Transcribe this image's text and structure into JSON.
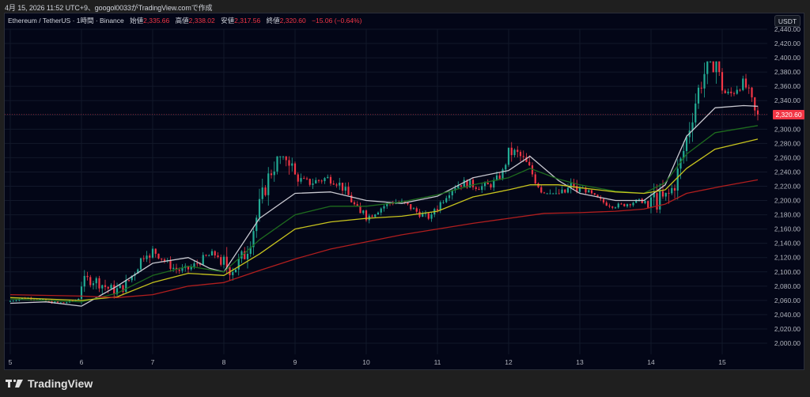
{
  "caption": "4月 15, 2026 11:52 UTC+9、googol0033がTradingView.comで作成",
  "legend": {
    "symbol": "Ethereum / TetherUS · 1時間 · Binance",
    "open_label": "始値",
    "open": "2,335.66",
    "high_label": "高値",
    "high": "2,338.02",
    "low_label": "安値",
    "low": "2,317.56",
    "close_label": "終値",
    "close": "2,320.60",
    "change": "−15.06 (−0.64%)"
  },
  "currency_button": "USDT",
  "last_price_tag": "2,320.60",
  "brand": "TradingView",
  "colors": {
    "background": "#030617",
    "up": "#22ab94",
    "down": "#f23645",
    "ma_white": "#c8c8d0",
    "ma_green": "#1e6b1e",
    "ma_yellow": "#c8c41e",
    "ma_red": "#b01e1e"
  },
  "chart_data": {
    "type": "candlestick",
    "title": "Ethereum / TetherUS · 1時間 · Binance",
    "xlabel": "",
    "ylabel": "USDT",
    "ylim": [
      2000,
      2440
    ],
    "y_ticks": [
      "2,440.00",
      "2,420.00",
      "2,400.00",
      "2,380.00",
      "2,360.00",
      "2,340.00",
      "2,320.00",
      "2,300.00",
      "2,280.00",
      "2,260.00",
      "2,240.00",
      "2,220.00",
      "2,200.00",
      "2,180.00",
      "2,160.00",
      "2,140.00",
      "2,120.00",
      "2,100.00",
      "2,080.00",
      "2,060.00",
      "2,040.00",
      "2,020.00",
      "2,000.00"
    ],
    "x_ticks": [
      "5",
      "6",
      "7",
      "8",
      "9",
      "10",
      "11",
      "12",
      "13",
      "14",
      "15"
    ],
    "grid": true,
    "last_price": 2320.6,
    "ohlc_daily_approx": [
      {
        "day": "5",
        "open": 2058,
        "high": 2072,
        "low": 2048,
        "close": 2062
      },
      {
        "day": "6",
        "open": 2062,
        "high": 2140,
        "low": 2030,
        "close": 2120
      },
      {
        "day": "7",
        "open": 2120,
        "high": 2170,
        "low": 2095,
        "close": 2110
      },
      {
        "day": "8",
        "open": 2110,
        "high": 2262,
        "low": 2072,
        "close": 2252
      },
      {
        "day": "9",
        "open": 2252,
        "high": 2265,
        "low": 2178,
        "close": 2186
      },
      {
        "day": "10",
        "open": 2186,
        "high": 2230,
        "low": 2168,
        "close": 2188
      },
      {
        "day": "11",
        "open": 2188,
        "high": 2262,
        "low": 2182,
        "close": 2250
      },
      {
        "day": "12",
        "open": 2250,
        "high": 2328,
        "low": 2210,
        "close": 2212
      },
      {
        "day": "13",
        "open": 2212,
        "high": 2222,
        "low": 2178,
        "close": 2190
      },
      {
        "day": "14",
        "open": 2190,
        "high": 2395,
        "low": 2182,
        "close": 2380
      },
      {
        "day": "15",
        "open": 2380,
        "high": 2418,
        "low": 2305,
        "close": 2320.6
      }
    ],
    "series": [
      {
        "name": "MA (white, short)",
        "color": "#c8c8d0",
        "points": [
          [
            5,
            2056
          ],
          [
            5.5,
            2058
          ],
          [
            6,
            2052
          ],
          [
            6.5,
            2080
          ],
          [
            7,
            2112
          ],
          [
            7.5,
            2120
          ],
          [
            7.8,
            2105
          ],
          [
            8,
            2100
          ],
          [
            8.5,
            2175
          ],
          [
            9,
            2210
          ],
          [
            9.5,
            2212
          ],
          [
            10,
            2200
          ],
          [
            10.5,
            2196
          ],
          [
            11,
            2206
          ],
          [
            11.5,
            2232
          ],
          [
            12,
            2242
          ],
          [
            12.3,
            2262
          ],
          [
            12.7,
            2228
          ],
          [
            13,
            2210
          ],
          [
            13.5,
            2200
          ],
          [
            13.9,
            2200
          ],
          [
            14.2,
            2222
          ],
          [
            14.5,
            2290
          ],
          [
            14.9,
            2330
          ],
          [
            15.3,
            2333
          ],
          [
            15.5,
            2332
          ]
        ]
      },
      {
        "name": "MA (green)",
        "color": "#1e6b1e",
        "points": [
          [
            5,
            2062
          ],
          [
            6,
            2058
          ],
          [
            6.5,
            2070
          ],
          [
            7,
            2095
          ],
          [
            7.5,
            2108
          ],
          [
            8,
            2100
          ],
          [
            8.5,
            2145
          ],
          [
            9,
            2180
          ],
          [
            9.5,
            2192
          ],
          [
            10,
            2192
          ],
          [
            10.5,
            2198
          ],
          [
            11,
            2208
          ],
          [
            11.5,
            2222
          ],
          [
            12,
            2232
          ],
          [
            12.3,
            2245
          ],
          [
            12.7,
            2230
          ],
          [
            13,
            2222
          ],
          [
            13.5,
            2213
          ],
          [
            13.9,
            2210
          ],
          [
            14.2,
            2225
          ],
          [
            14.5,
            2265
          ],
          [
            14.9,
            2295
          ],
          [
            15.5,
            2305
          ]
        ]
      },
      {
        "name": "MA (yellow)",
        "color": "#c8c41e",
        "points": [
          [
            5,
            2064
          ],
          [
            6,
            2060
          ],
          [
            6.5,
            2065
          ],
          [
            7,
            2085
          ],
          [
            7.5,
            2098
          ],
          [
            8,
            2095
          ],
          [
            8.5,
            2125
          ],
          [
            9,
            2160
          ],
          [
            9.5,
            2170
          ],
          [
            10,
            2175
          ],
          [
            10.5,
            2178
          ],
          [
            11,
            2185
          ],
          [
            11.5,
            2205
          ],
          [
            12,
            2215
          ],
          [
            12.3,
            2222
          ],
          [
            12.7,
            2222
          ],
          [
            13,
            2218
          ],
          [
            13.5,
            2212
          ],
          [
            13.9,
            2210
          ],
          [
            14.2,
            2215
          ],
          [
            14.5,
            2245
          ],
          [
            14.9,
            2272
          ],
          [
            15.5,
            2286
          ]
        ]
      },
      {
        "name": "MA (red, long)",
        "color": "#b01e1e",
        "points": [
          [
            5,
            2068
          ],
          [
            6,
            2066
          ],
          [
            6.5,
            2064
          ],
          [
            7,
            2068
          ],
          [
            7.5,
            2080
          ],
          [
            8,
            2085
          ],
          [
            8.5,
            2102
          ],
          [
            9,
            2118
          ],
          [
            9.5,
            2132
          ],
          [
            10,
            2142
          ],
          [
            10.5,
            2152
          ],
          [
            11,
            2160
          ],
          [
            11.5,
            2168
          ],
          [
            12,
            2175
          ],
          [
            12.5,
            2182
          ],
          [
            13,
            2183
          ],
          [
            13.5,
            2185
          ],
          [
            13.9,
            2188
          ],
          [
            14.2,
            2195
          ],
          [
            14.5,
            2210
          ],
          [
            15,
            2220
          ],
          [
            15.5,
            2229
          ]
        ]
      }
    ]
  }
}
